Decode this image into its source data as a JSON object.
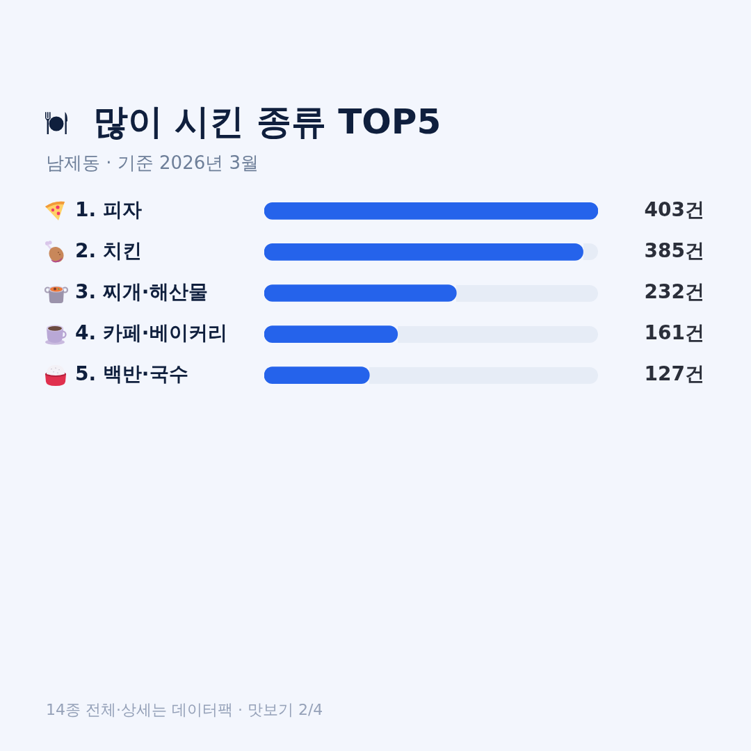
{
  "chart_data": {
    "type": "bar",
    "orientation": "horizontal",
    "title": "많이 시킨 종류 TOP5",
    "subtitle": "남제동 · 기준 2026년 3월",
    "categories": [
      "1. 피자",
      "2. 치킨",
      "3. 찌개·해산물",
      "4. 카페·베이커리",
      "5. 백반·국수"
    ],
    "values": [
      403,
      385,
      232,
      161,
      127
    ],
    "color": "#2563eb",
    "value_labels": [
      "403건",
      "385건",
      "232건",
      "161건",
      "127건"
    ],
    "annotations": [
      "14종 전체·상세는 데이터팩 · 맛보기 2/4"
    ]
  }
}
